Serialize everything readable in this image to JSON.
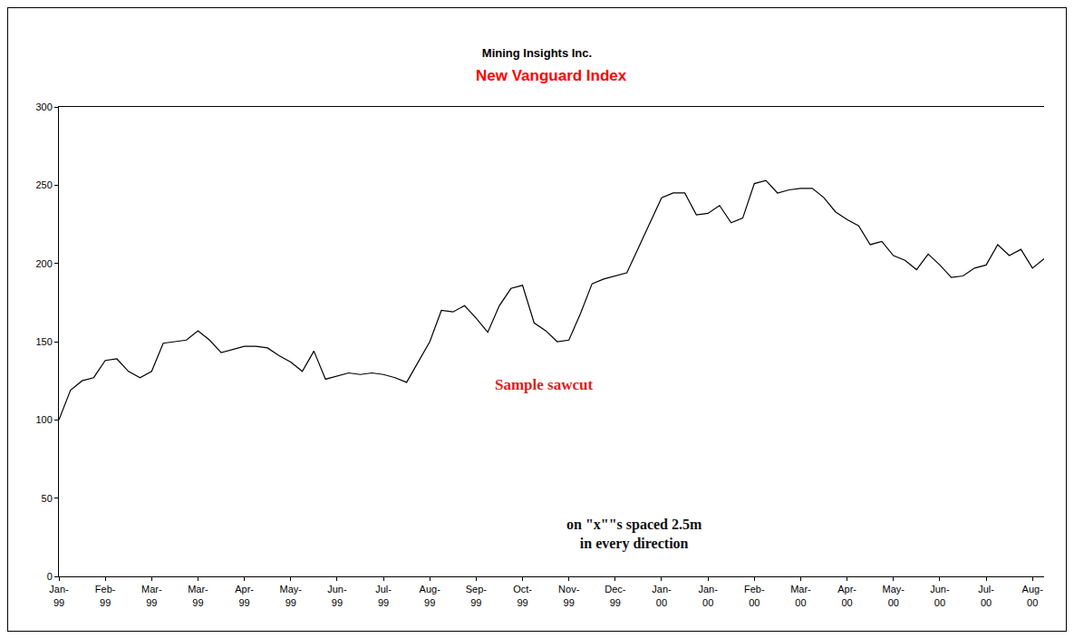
{
  "chart_data": {
    "type": "line",
    "title": "Mining Insights Inc.",
    "subtitle": "New Vanguard Index",
    "categories": [
      "Jan-99",
      null,
      null,
      null,
      "Feb-99",
      null,
      null,
      null,
      "Mar-99",
      null,
      null,
      null,
      "Mar-99",
      null,
      null,
      null,
      "Apr-99",
      null,
      null,
      null,
      "May-99",
      null,
      null,
      null,
      "Jun-99",
      null,
      null,
      null,
      "Jul-99",
      null,
      null,
      null,
      "Aug-99",
      null,
      null,
      null,
      "Sep-99",
      null,
      null,
      null,
      "Oct-99",
      null,
      null,
      null,
      "Nov-99",
      null,
      null,
      null,
      "Dec-99",
      null,
      null,
      null,
      "Jan-00",
      null,
      null,
      null,
      "Jan-00",
      null,
      null,
      null,
      "Feb-00",
      null,
      null,
      null,
      "Mar-00",
      null,
      null,
      null,
      "Apr-00",
      null,
      null,
      null,
      "May-00",
      null,
      null,
      null,
      "Jun-00",
      null,
      null,
      null,
      "Jul-00",
      null,
      null,
      null,
      "Aug-00",
      null
    ],
    "values": [
      100,
      119,
      125,
      127,
      138,
      139,
      131,
      127,
      131,
      149,
      150,
      151,
      157,
      151,
      143,
      145,
      147,
      147,
      146,
      141,
      137,
      131,
      144,
      126,
      128,
      130,
      129,
      130,
      129,
      127,
      124,
      137,
      150,
      170,
      169,
      173,
      165,
      156,
      173,
      184,
      186,
      162,
      157,
      150,
      151,
      168,
      187,
      190,
      192,
      194,
      210,
      226,
      242,
      245,
      245,
      231,
      232,
      237,
      226,
      229,
      251,
      253,
      245,
      247,
      248,
      248,
      242,
      233,
      228,
      224,
      212,
      214,
      205,
      202,
      196,
      206,
      199,
      191,
      192,
      197,
      199,
      212,
      205,
      209,
      197,
      203
    ],
    "color": "#000000",
    "ylim": [
      0,
      300
    ],
    "yticks": [
      0,
      50,
      100,
      150,
      200,
      250,
      300
    ],
    "grid": false,
    "annotations": [
      {
        "text": [
          "Sample sawcut"
        ]
      },
      {
        "text": [
          "on \"x\"\"s spaced 2.5m",
          "in every direction"
        ]
      }
    ]
  }
}
